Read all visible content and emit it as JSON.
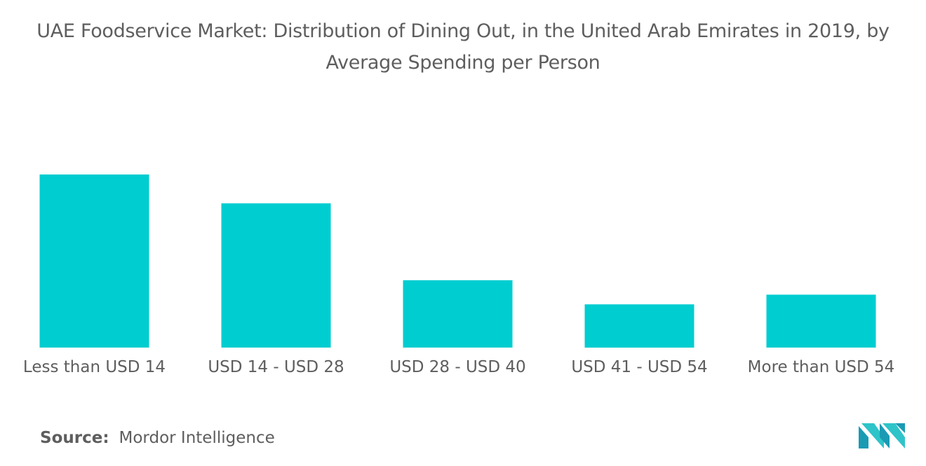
{
  "title": "UAE Foodservice Market: Distribution of Dining Out, in the United Arab Emirates in 2019, by Average Spending per Person",
  "source": {
    "label": "Source:",
    "text": "Mordor Intelligence"
  },
  "logo": {
    "icon": "mordor-intelligence-logo-icon",
    "colors": [
      "#1a9bb4",
      "#2ec4c9"
    ]
  },
  "colors": {
    "bar": "#00cdd0",
    "text": "#5e5e5e"
  },
  "chart_data": {
    "type": "bar",
    "title": "UAE Foodservice Market: Distribution of Dining Out, in the United Arab Emirates in 2019, by Average Spending per Person",
    "xlabel": "",
    "ylabel": "",
    "categories": [
      "Less than USD 14",
      "USD 14 - USD 28",
      "USD 28 - USD 40",
      "USD 41 - USD 54",
      "More than USD 54"
    ],
    "values": [
      36,
      30,
      14,
      9,
      11
    ],
    "ylim": [
      0,
      36
    ],
    "grid": false,
    "legend": "none"
  }
}
